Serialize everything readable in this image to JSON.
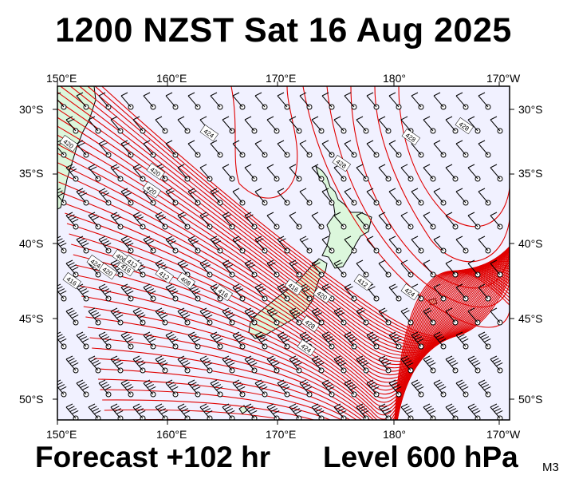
{
  "title": "1200 NZST Sat 16 Aug 2025",
  "footer": {
    "forecast": "Forecast +102 hr",
    "level": "Level 600 hPa",
    "code": "M3"
  },
  "axes": {
    "lon_top": [
      "150°E",
      "160°E",
      "170°E",
      "180°",
      "170°W"
    ],
    "lon_bottom": [
      "150°E",
      "160°E",
      "170°E",
      "180°",
      "170°W"
    ],
    "lat_left": [
      "30°S",
      "35°S",
      "40°S",
      "45°S",
      "50°S"
    ],
    "lat_right": [
      "30°S",
      "35°S",
      "40°S",
      "45°S",
      "50°S"
    ]
  },
  "colors": {
    "ocean": "#f1f1ff",
    "land": "#dcf7dc",
    "contour": "#e00000",
    "barb": "#000000"
  },
  "contour_labels": [
    "424",
    "428",
    "428",
    "428",
    "420",
    "420",
    "424",
    "420",
    "416",
    "412",
    "408",
    "416",
    "420",
    "416",
    "412",
    "424",
    "428",
    "424",
    "420",
    "416",
    "408",
    "412"
  ]
}
